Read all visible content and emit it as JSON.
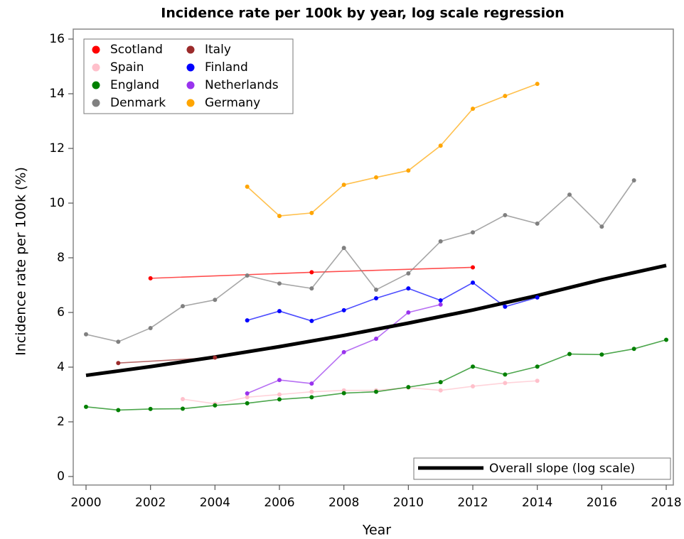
{
  "chart_data": {
    "type": "line",
    "title": "Incidence rate per 100k by year, log scale regression",
    "xlabel": "Year",
    "ylabel": "Incidence rate per 100k (%)",
    "xlim": [
      2000,
      2018
    ],
    "xticks": [
      2000,
      2002,
      2004,
      2006,
      2008,
      2010,
      2012,
      2014,
      2016,
      2018
    ],
    "ylim": [
      0,
      16
    ],
    "yticks": [
      0,
      2,
      4,
      6,
      8,
      10,
      12,
      14,
      16
    ],
    "legend": "top-left",
    "series": [
      {
        "name": "Scotland",
        "color": "#ff0000",
        "x": [
          2002,
          2007,
          2012
        ],
        "values": [
          7.25,
          7.47,
          7.65
        ]
      },
      {
        "name": "Spain",
        "color": "#ffc0cb",
        "x": [
          2003,
          2004,
          2005,
          2006,
          2007,
          2008,
          2009,
          2010,
          2011,
          2012,
          2013,
          2014
        ],
        "values": [
          2.83,
          2.66,
          2.9,
          3.0,
          3.1,
          3.15,
          3.15,
          3.25,
          3.15,
          3.3,
          3.42,
          3.5
        ]
      },
      {
        "name": "England",
        "color": "#008000",
        "x": [
          2000,
          2001,
          2002,
          2003,
          2004,
          2005,
          2006,
          2007,
          2008,
          2009,
          2010,
          2011,
          2012,
          2013,
          2014,
          2015,
          2016,
          2017,
          2018
        ],
        "values": [
          2.55,
          2.43,
          2.47,
          2.48,
          2.6,
          2.68,
          2.82,
          2.9,
          3.05,
          3.1,
          3.27,
          3.45,
          4.02,
          3.73,
          4.02,
          4.48,
          4.46,
          4.67,
          5.0
        ]
      },
      {
        "name": "Denmark",
        "color": "#808080",
        "x": [
          2000,
          2001,
          2002,
          2003,
          2004,
          2005,
          2006,
          2007,
          2008,
          2009,
          2010,
          2011,
          2012,
          2013,
          2014,
          2015,
          2016,
          2017
        ],
        "values": [
          5.2,
          4.93,
          5.43,
          6.23,
          6.46,
          7.35,
          7.06,
          6.88,
          8.36,
          6.83,
          7.43,
          8.6,
          8.93,
          9.56,
          9.25,
          10.31,
          9.14,
          10.83
        ]
      },
      {
        "name": "Italy",
        "color": "#9b2b2b",
        "x": [
          2001,
          2004
        ],
        "values": [
          4.15,
          4.35
        ]
      },
      {
        "name": "Finland",
        "color": "#0000ff",
        "x": [
          2005,
          2006,
          2007,
          2008,
          2009,
          2010,
          2011,
          2012,
          2013,
          2014
        ],
        "values": [
          5.71,
          6.05,
          5.69,
          6.08,
          6.52,
          6.88,
          6.44,
          7.09,
          6.21,
          6.55
        ]
      },
      {
        "name": "Netherlands",
        "color": "#9933ee",
        "x": [
          2005,
          2006,
          2007,
          2008,
          2009,
          2010,
          2011
        ],
        "values": [
          3.04,
          3.53,
          3.4,
          4.55,
          5.04,
          6.0,
          6.29
        ]
      },
      {
        "name": "Germany",
        "color": "#ffa500",
        "x": [
          2005,
          2006,
          2007,
          2008,
          2009,
          2010,
          2011,
          2012,
          2013,
          2014
        ],
        "values": [
          10.6,
          9.53,
          9.64,
          10.67,
          10.94,
          11.19,
          12.1,
          13.45,
          13.92,
          14.36
        ]
      }
    ],
    "trend": {
      "name": "Overall slope (log scale)",
      "color": "#000000",
      "x": [
        2000,
        2002,
        2004,
        2006,
        2008,
        2010,
        2012,
        2014,
        2016,
        2018
      ],
      "values": [
        3.7,
        4.02,
        4.37,
        4.75,
        5.16,
        5.61,
        6.09,
        6.62,
        7.2,
        7.72
      ]
    }
  }
}
